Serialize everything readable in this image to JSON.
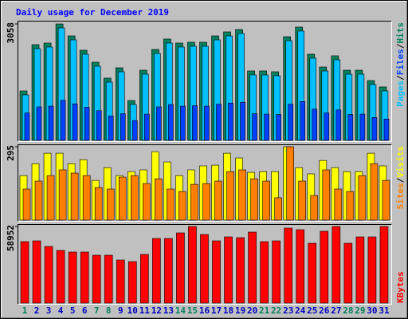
{
  "chart_data": [
    {
      "type": "bar",
      "title": "Daily usage for December 2019",
      "title_color": "#0000ff",
      "legend_separator": "/",
      "ylim": [
        0,
        3058
      ],
      "yticks": [
        3058
      ],
      "series": [
        {
          "name": "Hits",
          "color": "#00805c",
          "values": [
            1299,
            2514,
            2556,
            3058,
            2744,
            2367,
            2053,
            1634,
            1906,
            1047,
            1843,
            2388,
            2661,
            2556,
            2577,
            2577,
            2744,
            2849,
            2912,
            1823,
            1823,
            1802,
            2723,
            2975,
            2263,
            1927,
            2221,
            1843,
            1843,
            1571,
            1404
          ]
        },
        {
          "name": "Pages",
          "color": "#00c0ff",
          "values": [
            1194,
            2409,
            2451,
            2953,
            2639,
            2262,
            1948,
            1529,
            1801,
            942,
            1738,
            2283,
            2556,
            2451,
            2472,
            2472,
            2639,
            2744,
            2807,
            1718,
            1718,
            1697,
            2618,
            2870,
            2158,
            1822,
            2116,
            1738,
            1738,
            1466,
            1299
          ]
        },
        {
          "name": "Files",
          "color": "#0040ff",
          "values": [
            720,
            880,
            900,
            1050,
            960,
            870,
            780,
            640,
            700,
            520,
            690,
            880,
            940,
            900,
            910,
            900,
            950,
            980,
            1000,
            700,
            690,
            680,
            950,
            1020,
            820,
            720,
            800,
            680,
            690,
            600,
            560
          ]
        }
      ]
    },
    {
      "type": "bar",
      "ylim": [
        0,
        295
      ],
      "yticks": [
        295
      ],
      "series": [
        {
          "name": "Visits",
          "color": "#ffff00",
          "values": [
            179,
            227,
            269,
            269,
            227,
            243,
            160,
            211,
            179,
            195,
            202,
            275,
            234,
            179,
            202,
            218,
            221,
            269,
            250,
            192,
            195,
            195,
            295,
            211,
            186,
            240,
            211,
            195,
            195,
            269,
            218
          ]
        },
        {
          "name": "Sites",
          "color": "#ff8000",
          "values": [
            125,
            157,
            179,
            202,
            189,
            179,
            131,
            125,
            173,
            179,
            147,
            166,
            125,
            115,
            144,
            147,
            157,
            195,
            202,
            166,
            157,
            90,
            295,
            157,
            99,
            202,
            125,
            115,
            179,
            227,
            160
          ]
        }
      ]
    },
    {
      "type": "bar",
      "ylim": [
        0,
        58952
      ],
      "yticks": [
        58952
      ],
      "categories": [
        "1",
        "2",
        "3",
        "4",
        "5",
        "6",
        "7",
        "8",
        "9",
        "10",
        "11",
        "12",
        "13",
        "14",
        "15",
        "16",
        "17",
        "18",
        "19",
        "20",
        "21",
        "22",
        "23",
        "24",
        "25",
        "26",
        "27",
        "28",
        "29",
        "30",
        "31"
      ],
      "category_colors": [
        "#00805c",
        "#0000c0",
        "#0000c0",
        "#0000c0",
        "#0000c0",
        "#0000c0",
        "#00805c",
        "#00805c",
        "#0000c0",
        "#0000c0",
        "#0000c0",
        "#0000c0",
        "#0000c0",
        "#00805c",
        "#00805c",
        "#0000c0",
        "#0000c0",
        "#0000c0",
        "#0000c0",
        "#0000c0",
        "#00805c",
        "#00805c",
        "#0000c0",
        "#0000c0",
        "#0000c0",
        "#0000c0",
        "#0000c0",
        "#00805c",
        "#00805c",
        "#0000c0",
        "#0000c0"
      ],
      "series": [
        {
          "name": "KBytes",
          "color": "#ff0000",
          "values": [
            47278,
            47892,
            43594,
            40524,
            39296,
            39296,
            36840,
            36840,
            33156,
            31928,
            37454,
            49734,
            49734,
            54032,
            58952,
            52804,
            47892,
            50962,
            50348,
            54646,
            47278,
            47892,
            57716,
            56488,
            46050,
            55260,
            58940,
            46050,
            50962,
            50962,
            58950
          ]
        }
      ]
    }
  ]
}
